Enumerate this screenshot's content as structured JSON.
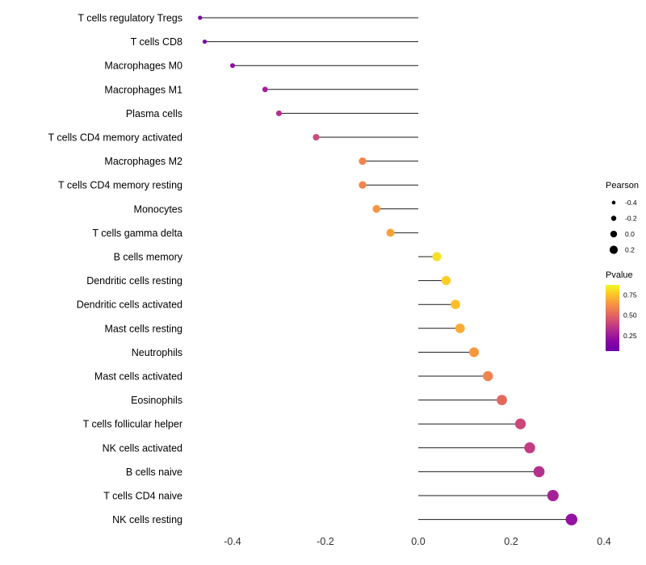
{
  "chart_data": {
    "type": "lollipop",
    "title": "",
    "xlabel": "",
    "ylabel": "",
    "grid": false,
    "background": "#ffffff",
    "stem_color": "#1a1a1a",
    "xlim": [
      -0.52,
      0.42
    ],
    "x_ticks": [
      "-0.4",
      "-0.2",
      "0.0",
      "0.2",
      "0.4"
    ],
    "x_tick_values": [
      -0.4,
      -0.2,
      0.0,
      0.2,
      0.4
    ],
    "points": [
      {
        "label": "T cells regulatory Tregs",
        "pearson": -0.47,
        "pvalue": 0.01,
        "color": "#8004a8"
      },
      {
        "label": "T cells CD8",
        "pearson": -0.46,
        "pvalue": 0.02,
        "color": "#8206a6"
      },
      {
        "label": "Macrophages M0",
        "pearson": -0.4,
        "pvalue": 0.06,
        "color": "#8e0ba5"
      },
      {
        "label": "Macrophages M1",
        "pearson": -0.33,
        "pvalue": 0.12,
        "color": "#a31e9a"
      },
      {
        "label": "Plasma cells",
        "pearson": -0.3,
        "pvalue": 0.18,
        "color": "#b42e8d"
      },
      {
        "label": "T cells CD4 memory activated",
        "pearson": -0.22,
        "pvalue": 0.3,
        "color": "#ca4b7c"
      },
      {
        "label": "Macrophages M2",
        "pearson": -0.12,
        "pvalue": 0.57,
        "color": "#f1854e"
      },
      {
        "label": "T cells CD4 memory resting",
        "pearson": -0.12,
        "pvalue": 0.57,
        "color": "#f1854e"
      },
      {
        "label": "Monocytes",
        "pearson": -0.09,
        "pvalue": 0.65,
        "color": "#f89540"
      },
      {
        "label": "T cells gamma delta",
        "pearson": -0.06,
        "pvalue": 0.7,
        "color": "#fba337"
      },
      {
        "label": "B cells memory",
        "pearson": 0.04,
        "pvalue": 0.87,
        "color": "#f4e126"
      },
      {
        "label": "Dendritic cells resting",
        "pearson": 0.06,
        "pvalue": 0.79,
        "color": "#fccd25"
      },
      {
        "label": "Dendritic cells activated",
        "pearson": 0.08,
        "pvalue": 0.75,
        "color": "#fdbe2a"
      },
      {
        "label": "Mast cells resting",
        "pearson": 0.09,
        "pvalue": 0.7,
        "color": "#fcab33"
      },
      {
        "label": "Neutrophils",
        "pearson": 0.12,
        "pvalue": 0.64,
        "color": "#f9983e"
      },
      {
        "label": "Mast cells activated",
        "pearson": 0.15,
        "pvalue": 0.56,
        "color": "#f1834f"
      },
      {
        "label": "Eosinophils",
        "pearson": 0.18,
        "pvalue": 0.47,
        "color": "#e4695d"
      },
      {
        "label": "T cells follicular helper",
        "pearson": 0.22,
        "pvalue": 0.31,
        "color": "#cc4778"
      },
      {
        "label": "NK cells activated",
        "pearson": 0.24,
        "pvalue": 0.26,
        "color": "#c23c83"
      },
      {
        "label": "B cells naive",
        "pearson": 0.26,
        "pvalue": 0.22,
        "color": "#b5308b"
      },
      {
        "label": "T cells CD4 naive",
        "pearson": 0.29,
        "pvalue": 0.14,
        "color": "#a62198"
      },
      {
        "label": "NK cells resting",
        "pearson": 0.33,
        "pvalue": 0.08,
        "color": "#9511a1"
      }
    ],
    "legend": {
      "position": "right",
      "size_title": "Pearson",
      "size_ticks": [
        "-0.4",
        "-0.2",
        "0.0",
        "0.2"
      ],
      "size_tick_values": [
        -0.4,
        -0.2,
        0.0,
        0.2
      ],
      "size_dot_color": "#000000",
      "color_title": "Pvalue",
      "color_ticks": [
        "0.75",
        "0.50",
        "0.25"
      ],
      "color_tick_values": [
        0.75,
        0.5,
        0.25
      ],
      "color_scale": {
        "name": "plasma",
        "stops": [
          "#f0f921",
          "#fdc527",
          "#f89441",
          "#e66c5c",
          "#cc4778",
          "#aa2395",
          "#8606a6",
          "#6e00a8"
        ]
      }
    }
  }
}
